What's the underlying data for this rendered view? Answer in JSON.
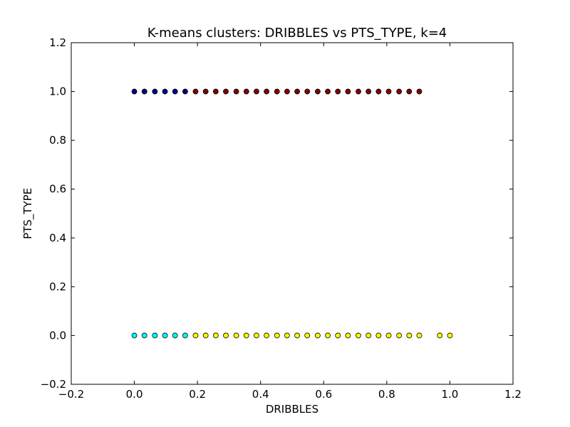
{
  "chart_data": {
    "type": "scatter",
    "title": "K-means clusters: DRIBBLES vs PTS_TYPE, k=4",
    "xlabel": "DRIBBLES",
    "ylabel": "PTS_TYPE",
    "xlim": [
      -0.2,
      1.2
    ],
    "ylim": [
      -0.2,
      1.2
    ],
    "xticks": [
      "−0.2",
      "0.0",
      "0.2",
      "0.4",
      "0.6",
      "0.8",
      "1.0",
      "1.2"
    ],
    "yticks": [
      "−0.2",
      "0.0",
      "0.2",
      "0.4",
      "0.6",
      "0.8",
      "1.0",
      "1.2"
    ],
    "grid": false,
    "legend": "none",
    "series": [
      {
        "color": "#000080",
        "points": [
          [
            0.0,
            1
          ],
          [
            0.032,
            1
          ],
          [
            0.065,
            1
          ],
          [
            0.097,
            1
          ],
          [
            0.129,
            1
          ],
          [
            0.161,
            1
          ]
        ]
      },
      {
        "color": "#800000",
        "points": [
          [
            0.194,
            1
          ],
          [
            0.226,
            1
          ],
          [
            0.258,
            1
          ],
          [
            0.29,
            1
          ],
          [
            0.323,
            1
          ],
          [
            0.355,
            1
          ],
          [
            0.387,
            1
          ],
          [
            0.419,
            1
          ],
          [
            0.452,
            1
          ],
          [
            0.484,
            1
          ],
          [
            0.516,
            1
          ],
          [
            0.548,
            1
          ],
          [
            0.581,
            1
          ],
          [
            0.613,
            1
          ],
          [
            0.645,
            1
          ],
          [
            0.677,
            1
          ],
          [
            0.71,
            1
          ],
          [
            0.742,
            1
          ],
          [
            0.774,
            1
          ],
          [
            0.806,
            1
          ],
          [
            0.839,
            1
          ],
          [
            0.871,
            1
          ],
          [
            0.903,
            1
          ]
        ]
      },
      {
        "color": "#00ffff",
        "points": [
          [
            0.0,
            0
          ],
          [
            0.032,
            0
          ],
          [
            0.065,
            0
          ],
          [
            0.097,
            0
          ],
          [
            0.129,
            0
          ],
          [
            0.161,
            0
          ]
        ]
      },
      {
        "color": "#ffff00",
        "points": [
          [
            0.194,
            0
          ],
          [
            0.226,
            0
          ],
          [
            0.258,
            0
          ],
          [
            0.29,
            0
          ],
          [
            0.323,
            0
          ],
          [
            0.355,
            0
          ],
          [
            0.387,
            0
          ],
          [
            0.419,
            0
          ],
          [
            0.452,
            0
          ],
          [
            0.484,
            0
          ],
          [
            0.516,
            0
          ],
          [
            0.548,
            0
          ],
          [
            0.581,
            0
          ],
          [
            0.613,
            0
          ],
          [
            0.645,
            0
          ],
          [
            0.677,
            0
          ],
          [
            0.71,
            0
          ],
          [
            0.742,
            0
          ],
          [
            0.774,
            0
          ],
          [
            0.806,
            0
          ],
          [
            0.839,
            0
          ],
          [
            0.871,
            0
          ],
          [
            0.903,
            0
          ],
          [
            0.968,
            0
          ],
          [
            1.0,
            0
          ]
        ]
      }
    ]
  }
}
